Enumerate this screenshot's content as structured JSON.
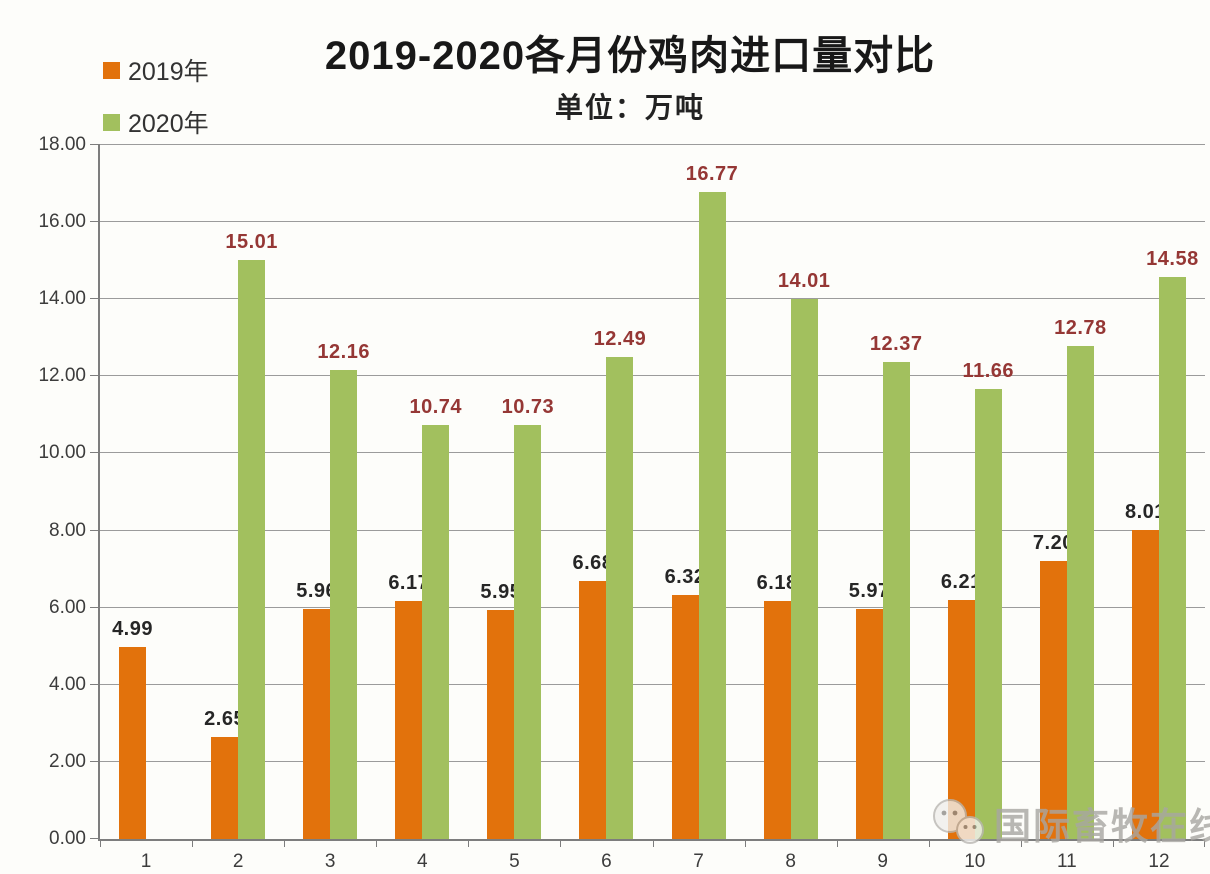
{
  "page": {
    "background": "#fdfdfa"
  },
  "header": {
    "title": "2019-2020各月份鸡肉进口量对比",
    "subtitle": "单位：万吨"
  },
  "legend": {
    "position": "top-left",
    "items": [
      {
        "label": "2019年",
        "color": "#E2720C"
      },
      {
        "label": "2020年",
        "color": "#A2C05E"
      }
    ]
  },
  "watermark": {
    "icon": "wechat-bubbles-icon",
    "text": "国际畜牧在线"
  },
  "chart_data": {
    "type": "bar",
    "title": "2019-2020各月份鸡肉进口量对比",
    "unit_label": "单位：万吨",
    "categories": [
      "1",
      "2",
      "3",
      "4",
      "5",
      "6",
      "7",
      "8",
      "9",
      "10",
      "11",
      "12"
    ],
    "series": [
      {
        "name": "2019年",
        "color": "#E2720C",
        "label_color": "#262626",
        "values": [
          4.99,
          2.65,
          5.96,
          6.17,
          5.95,
          6.68,
          6.32,
          6.18,
          5.97,
          6.21,
          7.2,
          8.01
        ]
      },
      {
        "name": "2020年",
        "color": "#A2C05E",
        "label_color": "#953735",
        "values": [
          null,
          15.01,
          12.16,
          10.74,
          10.73,
          12.49,
          16.77,
          14.01,
          12.37,
          11.66,
          12.78,
          14.58
        ]
      }
    ],
    "ylim": [
      0,
      18
    ],
    "ytick_step": 2,
    "ytick_decimals": 2,
    "value_label_decimals": 2,
    "grid": true,
    "grid_color": "#9b9b9b",
    "axis_color": "#7d7d7d",
    "legend_position": "top-left"
  }
}
